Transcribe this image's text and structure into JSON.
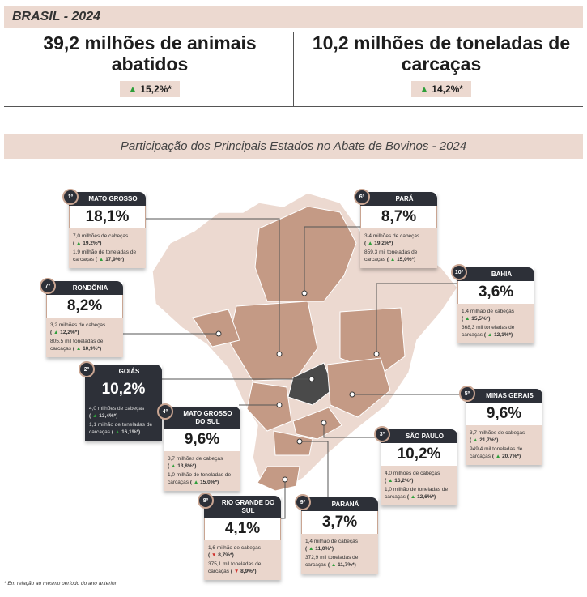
{
  "header": {
    "title": "BRASIL - 2024",
    "stats": [
      {
        "text": "39,2 milhões de animais abatidos",
        "change": "15,2%*",
        "dir": "up"
      },
      {
        "text": "10,2 milhões de toneladas de carcaças",
        "change": "14,2%*",
        "dir": "up"
      }
    ]
  },
  "map_title": "Participação dos Principais Estados no Abate de Bovinos - 2024",
  "colors": {
    "band": "#ecd9d0",
    "dark": "#2d3038",
    "state_medium": "#c49a85",
    "state_light": "#ecd9d0",
    "goias": "#4a4a4a",
    "up": "#2e9e3a",
    "down": "#d0312d"
  },
  "states": [
    {
      "rank": "1º",
      "name": "MATO GROSSO",
      "pct": "18,1%",
      "l1": "7,0 milhões de cabeças",
      "c1": "19,2%*",
      "d1": "up",
      "l2": "1,9 milhão de toneladas de carcaças",
      "c2": "17,9%*",
      "d2": "up"
    },
    {
      "rank": "2º",
      "name": "GOIÁS",
      "pct": "10,2%",
      "l1": "4,0 milhões de cabeças",
      "c1": "13,4%*",
      "d1": "up",
      "l2": "1,1 milhão de toneladas de carcaças",
      "c2": "16,1%*",
      "d2": "up"
    },
    {
      "rank": "3º",
      "name": "SÃO PAULO",
      "pct": "10,2%",
      "l1": "4,0 milhões de cabeças",
      "c1": "16,2%*",
      "d1": "up",
      "l2": "1,0 milhão de toneladas de carcaças",
      "c2": "12,6%*",
      "d2": "up"
    },
    {
      "rank": "4º",
      "name": "MATO GROSSO DO SUL",
      "pct": "9,6%",
      "l1": "3,7 milhões de cabeças",
      "c1": "13,8%*",
      "d1": "up",
      "l2": "1,0 milhão de toneladas de carcaças",
      "c2": "15,0%*",
      "d2": "up"
    },
    {
      "rank": "5º",
      "name": "MINAS GERAIS",
      "pct": "9,6%",
      "l1": "3,7 milhões de cabeças",
      "c1": "21,7%*",
      "d1": "up",
      "l2": "949,4 mil toneladas de carcaças",
      "c2": "20,7%*",
      "d2": "up"
    },
    {
      "rank": "6º",
      "name": "PARÁ",
      "pct": "8,7%",
      "l1": "3,4 milhões de cabeças",
      "c1": "19,2%*",
      "d1": "up",
      "l2": "859,3 mil toneladas de carcaças",
      "c2": "15,0%*",
      "d2": "up"
    },
    {
      "rank": "7º",
      "name": "RONDÔNIA",
      "pct": "8,2%",
      "l1": "3,2 milhões de cabeças",
      "c1": "12,2%*",
      "d1": "up",
      "l2": "805,5 mil toneladas de carcaças",
      "c2": "10,9%*",
      "d2": "up"
    },
    {
      "rank": "8º",
      "name": "RIO GRANDE DO SUL",
      "pct": "4,1%",
      "l1": "1,6 milhão de cabeças",
      "c1": "8,7%*",
      "d1": "down",
      "l2": "375,1 mil toneladas de carcaças",
      "c2": "8,9%*",
      "d2": "down"
    },
    {
      "rank": "9º",
      "name": "PARANÁ",
      "pct": "3,7%",
      "l1": "1,4 milhão de cabeças",
      "c1": "11,0%*",
      "d1": "up",
      "l2": "372,9 mil toneladas de carcaças",
      "c2": "11,7%*",
      "d2": "up"
    },
    {
      "rank": "10º",
      "name": "BAHIA",
      "pct": "3,6%",
      "l1": "1,4 milhão de cabeças",
      "c1": "15,5%*",
      "d1": "up",
      "l2": "368,3 mil toneladas de carcaças",
      "c2": "12,1%*",
      "d2": "up"
    }
  ],
  "footnote": "* Em relação ao mesmo período do ano anterior"
}
